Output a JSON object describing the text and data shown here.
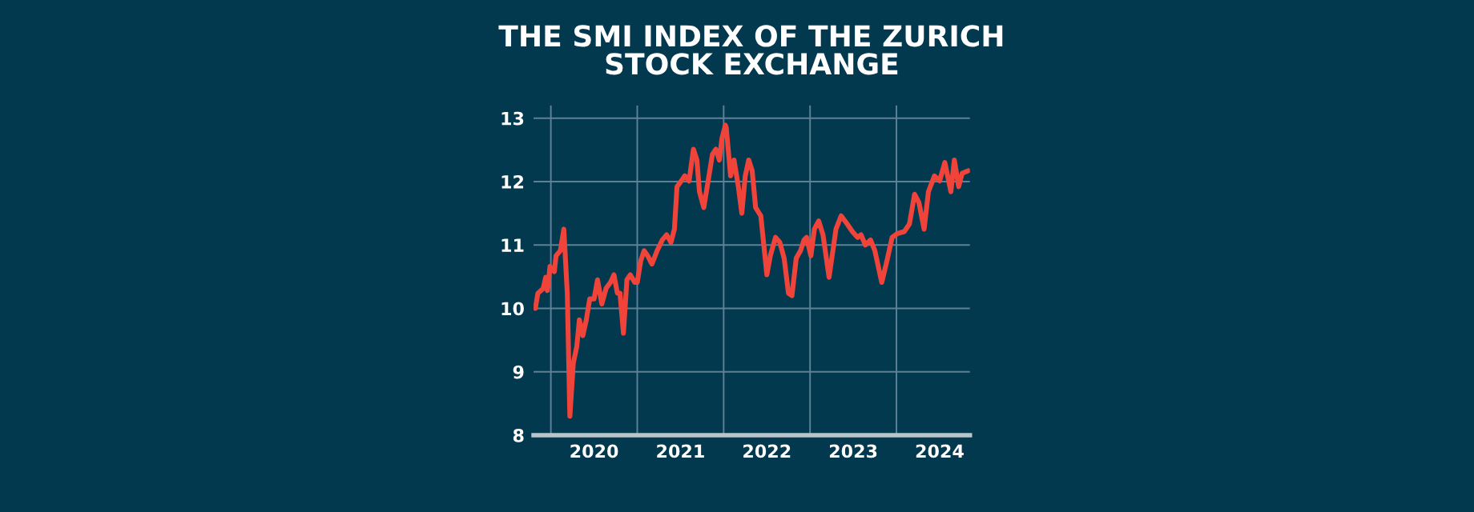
{
  "chart_data": {
    "type": "line",
    "title": "THE SMI INDEX OF THE ZURICH\nSTOCK EXCHANGE",
    "x": [
      2019.82,
      2019.85,
      2019.91,
      2019.94,
      2019.96,
      2019.99,
      2020.04,
      2020.06,
      2020.11,
      2020.15,
      2020.19,
      2020.22,
      2020.26,
      2020.3,
      2020.33,
      2020.37,
      2020.41,
      2020.45,
      2020.5,
      2020.54,
      2020.59,
      2020.64,
      2020.69,
      2020.73,
      2020.77,
      2020.8,
      2020.84,
      2020.88,
      2020.92,
      2020.97,
      2021.0,
      2021.04,
      2021.08,
      2021.12,
      2021.17,
      2021.23,
      2021.29,
      2021.34,
      2021.39,
      2021.43,
      2021.46,
      2021.51,
      2021.55,
      2021.6,
      2021.65,
      2021.69,
      2021.72,
      2021.77,
      2021.83,
      2021.87,
      2021.91,
      2021.95,
      2021.98,
      2022.02,
      2022.03,
      2022.08,
      2022.12,
      2022.17,
      2022.21,
      2022.25,
      2022.29,
      2022.33,
      2022.37,
      2022.43,
      2022.5,
      2022.54,
      2022.6,
      2022.65,
      2022.7,
      2022.75,
      2022.79,
      2022.84,
      2022.89,
      2022.93,
      2022.96,
      2023.01,
      2023.05,
      2023.1,
      2023.15,
      2023.22,
      2023.3,
      2023.36,
      2023.43,
      2023.49,
      2023.55,
      2023.59,
      2023.64,
      2023.7,
      2023.75,
      2023.83,
      2023.89,
      2023.95,
      2024.01,
      2024.09,
      2024.15,
      2024.21,
      2024.26,
      2024.32,
      2024.37,
      2024.44,
      2024.5,
      2024.56,
      2024.63,
      2024.67,
      2024.72,
      2024.76,
      2024.83
    ],
    "series": [
      {
        "color": "#f0443a",
        "values": [
          10.0,
          10.24,
          10.31,
          10.49,
          10.28,
          10.66,
          10.58,
          10.83,
          10.91,
          11.25,
          10.24,
          8.3,
          9.14,
          9.4,
          9.82,
          9.57,
          9.82,
          10.15,
          10.15,
          10.45,
          10.07,
          10.32,
          10.41,
          10.53,
          10.24,
          10.24,
          9.61,
          10.45,
          10.53,
          10.41,
          10.41,
          10.75,
          10.91,
          10.83,
          10.7,
          10.91,
          11.08,
          11.16,
          11.04,
          11.25,
          11.92,
          12.01,
          12.09,
          12.01,
          12.51,
          12.34,
          11.84,
          11.59,
          12.09,
          12.43,
          12.51,
          12.34,
          12.68,
          12.89,
          12.85,
          12.09,
          12.34,
          11.92,
          11.5,
          12.09,
          12.34,
          12.17,
          11.59,
          11.46,
          10.53,
          10.83,
          11.12,
          11.04,
          10.79,
          10.24,
          10.2,
          10.79,
          10.91,
          11.08,
          11.12,
          10.83,
          11.25,
          11.38,
          11.16,
          10.49,
          11.25,
          11.46,
          11.33,
          11.21,
          11.12,
          11.16,
          11.0,
          11.08,
          10.91,
          10.41,
          10.75,
          11.12,
          11.18,
          11.21,
          11.33,
          11.8,
          11.67,
          11.25,
          11.84,
          12.09,
          12.01,
          12.3,
          11.84,
          12.34,
          11.92,
          12.13,
          12.17
        ]
      }
    ],
    "xlim": [
      2019.8,
      2024.85
    ],
    "xticks": [
      {
        "value": 2020.5,
        "label": "2020"
      },
      {
        "value": 2021.5,
        "label": "2021"
      },
      {
        "value": 2022.5,
        "label": "2022"
      },
      {
        "value": 2023.5,
        "label": "2023"
      },
      {
        "value": 2024.5,
        "label": "2024"
      }
    ],
    "ylim": [
      8,
      13.2
    ],
    "yticks": [
      8,
      9,
      10,
      11,
      12,
      13
    ],
    "grid": "y",
    "ref_lines": [
      {
        "axis": "x",
        "value": 2020,
        "color": "#5f8196"
      },
      {
        "axis": "x",
        "value": 2021,
        "color": "#5f8196"
      },
      {
        "axis": "x",
        "value": 2022,
        "color": "#5f8196"
      },
      {
        "axis": "x",
        "value": 2023,
        "color": "#5f8196"
      },
      {
        "axis": "x",
        "value": 2024,
        "color": "#5f8196"
      }
    ],
    "marker": "none",
    "line_style": "solid"
  }
}
